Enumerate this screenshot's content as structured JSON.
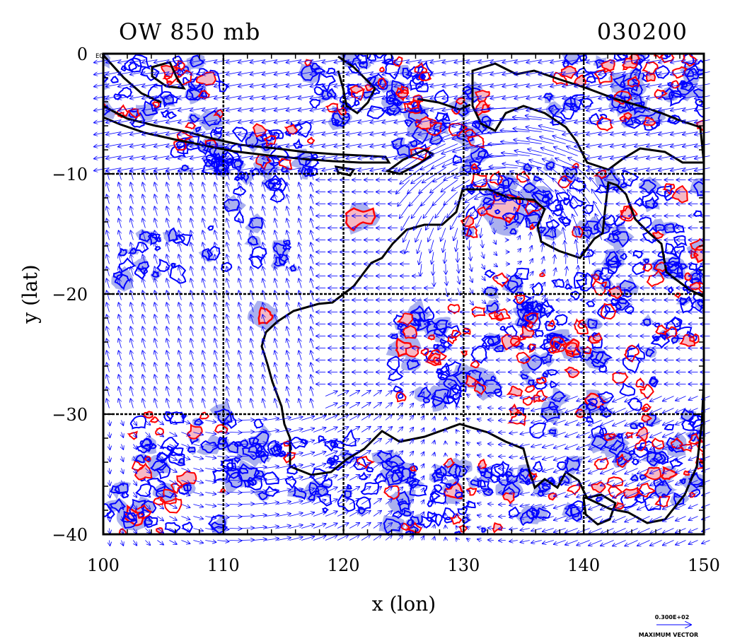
{
  "chart_data": {
    "type": "contour",
    "title_left": "OW 850 mb",
    "title_right": "030200",
    "xlabel": "x (lon)",
    "ylabel": "y (lat)",
    "xlim": [
      100,
      150
    ],
    "ylim": [
      -40,
      0
    ],
    "x_ticks": [
      100,
      110,
      120,
      130,
      140,
      150
    ],
    "x_tick_labels": [
      "100",
      "110",
      "120",
      "130",
      "140",
      "150"
    ],
    "y_ticks": [
      0,
      -10,
      -20,
      -30,
      -40
    ],
    "y_tick_labels": [
      "0",
      "−10",
      "−20",
      "−30",
      "−40"
    ],
    "corner_label": "EQ",
    "grid": true,
    "colors": {
      "positive_contour": "#ff0000",
      "positive_fill": "#f6b8c4",
      "negative_contour": "#0000ff",
      "negative_fill": "#aab0ee",
      "vectors": "#0000ff",
      "coastline": "#000000"
    },
    "reference_vector": {
      "value_label": "0.300E+02",
      "caption": "MAXIMUM VECTOR"
    }
  }
}
